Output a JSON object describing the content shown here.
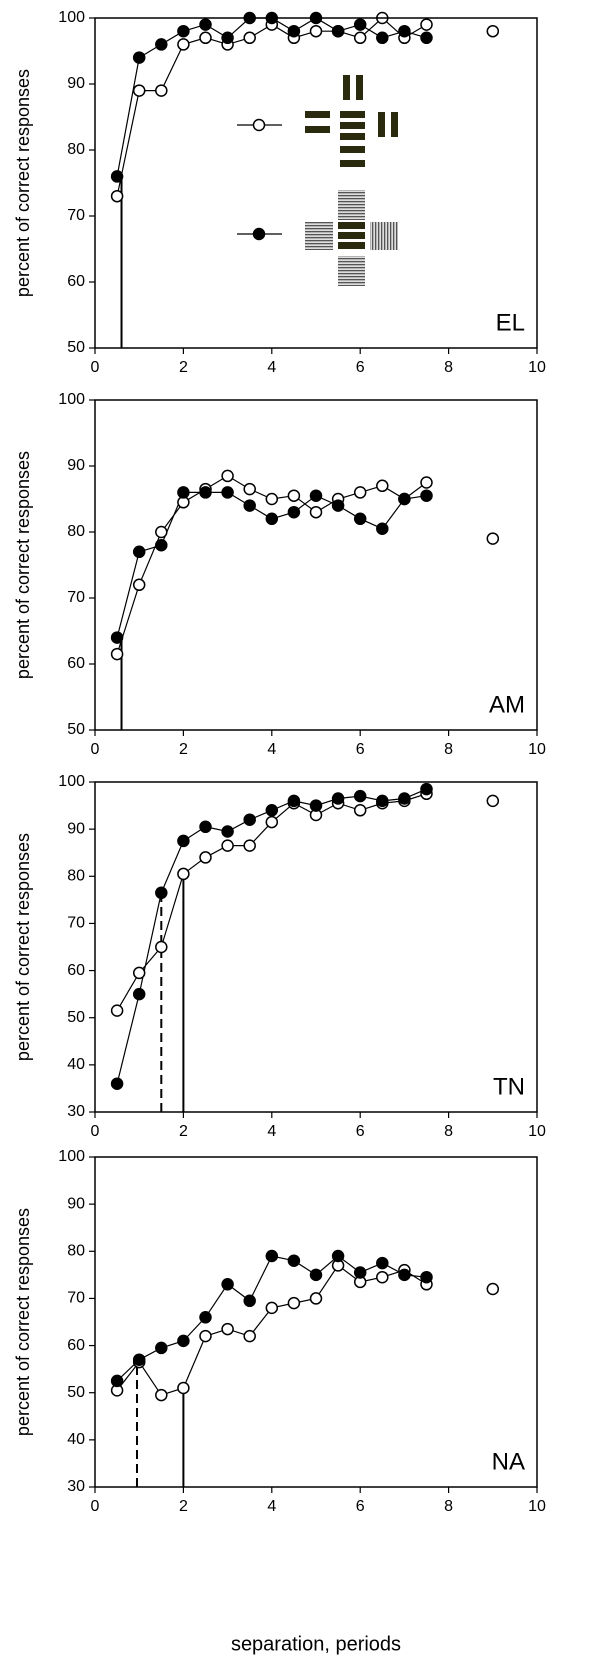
{
  "chart_data": [
    {
      "type": "line",
      "label": "EL",
      "ylabel": "percent of correct responses",
      "xlim": [
        0,
        10
      ],
      "xticks": [
        0,
        2,
        4,
        6,
        8,
        10
      ],
      "ylim": [
        50,
        100
      ],
      "yticks": [
        50,
        60,
        70,
        80,
        90,
        100
      ],
      "legend": true,
      "series": [
        {
          "marker": "open",
          "color": "#000000",
          "x": [
            0.5,
            1,
            1.5,
            2,
            2.5,
            3,
            3.5,
            4,
            4.5,
            5,
            5.5,
            6,
            6.5,
            7,
            7.5
          ],
          "values": [
            73,
            89,
            89,
            96,
            97,
            96,
            97,
            99,
            97,
            98,
            98,
            97,
            100,
            97,
            99
          ]
        },
        {
          "marker": "filled",
          "color": "#000000",
          "x": [
            0.5,
            1,
            1.5,
            2,
            2.5,
            3,
            3.5,
            4,
            4.5,
            5,
            5.5,
            6,
            6.5,
            7,
            7.5
          ],
          "values": [
            76,
            94,
            96,
            98,
            99,
            97,
            100,
            100,
            98,
            100,
            98,
            99,
            97,
            98,
            97
          ]
        },
        {
          "marker": "open",
          "color": "#000000",
          "line": false,
          "x": [
            9
          ],
          "values": [
            98
          ]
        }
      ],
      "thresholds": [
        {
          "x": 0.6,
          "y": 76,
          "style": "solid"
        }
      ]
    },
    {
      "type": "line",
      "label": "AM",
      "ylabel": "percent of correct responses",
      "xlim": [
        0,
        10
      ],
      "xticks": [
        0,
        2,
        4,
        6,
        8,
        10
      ],
      "ylim": [
        50,
        100
      ],
      "yticks": [
        50,
        60,
        70,
        80,
        90,
        100
      ],
      "series": [
        {
          "marker": "open",
          "color": "#000000",
          "x": [
            0.5,
            1,
            1.5,
            2,
            2.5,
            3,
            3.5,
            4,
            4.5,
            5,
            5.5,
            6,
            6.5,
            7,
            7.5
          ],
          "values": [
            61.5,
            72,
            80,
            84.5,
            86.5,
            88.5,
            86.5,
            85,
            85.5,
            83,
            85,
            86,
            87,
            85,
            87.5
          ]
        },
        {
          "marker": "filled",
          "color": "#000000",
          "x": [
            0.5,
            1,
            1.5,
            2,
            2.5,
            3,
            3.5,
            4,
            4.5,
            5,
            5.5,
            6,
            6.5,
            7,
            7.5
          ],
          "values": [
            64,
            77,
            78,
            86,
            86,
            86,
            84,
            82,
            83,
            85.5,
            84,
            82,
            80.5,
            85,
            85.5
          ]
        },
        {
          "marker": "open",
          "color": "#000000",
          "line": false,
          "x": [
            9
          ],
          "values": [
            79
          ]
        }
      ],
      "thresholds": [
        {
          "x": 0.6,
          "y": 64,
          "style": "solid"
        }
      ]
    },
    {
      "type": "line",
      "label": "TN",
      "ylabel": "percent of correct responses",
      "xlim": [
        0,
        10
      ],
      "xticks": [
        0,
        2,
        4,
        6,
        8,
        10
      ],
      "ylim": [
        30,
        100
      ],
      "yticks": [
        30,
        40,
        50,
        60,
        70,
        80,
        90,
        100
      ],
      "series": [
        {
          "marker": "open",
          "color": "#000000",
          "x": [
            0.5,
            1,
            1.5,
            2,
            2.5,
            3,
            3.5,
            4,
            4.5,
            5,
            5.5,
            6,
            6.5,
            7,
            7.5
          ],
          "values": [
            51.5,
            59.5,
            65,
            80.5,
            84,
            86.5,
            86.5,
            91.5,
            95.5,
            93,
            95.5,
            94,
            95.5,
            96,
            97.5
          ]
        },
        {
          "marker": "filled",
          "color": "#000000",
          "x": [
            0.5,
            1,
            1.5,
            2,
            2.5,
            3,
            3.5,
            4,
            4.5,
            5,
            5.5,
            6,
            6.5,
            7,
            7.5
          ],
          "values": [
            36,
            55,
            76.5,
            87.5,
            90.5,
            89.5,
            92,
            94,
            96,
            95,
            96.5,
            97,
            96,
            96.5,
            98.5
          ]
        },
        {
          "marker": "open",
          "color": "#000000",
          "line": false,
          "x": [
            9
          ],
          "values": [
            96
          ]
        }
      ],
      "thresholds": [
        {
          "x": 1.5,
          "y": 76.5,
          "style": "dashed"
        },
        {
          "x": 2,
          "y": 80.5,
          "style": "solid"
        }
      ]
    },
    {
      "type": "line",
      "label": "NA",
      "ylabel": "percent of correct responses",
      "xlabel": "separation, periods",
      "xlim": [
        0,
        10
      ],
      "xticks": [
        0,
        2,
        4,
        6,
        8,
        10
      ],
      "ylim": [
        30,
        100
      ],
      "yticks": [
        30,
        40,
        50,
        60,
        70,
        80,
        90,
        100
      ],
      "series": [
        {
          "marker": "open",
          "color": "#000000",
          "x": [
            0.5,
            1,
            1.5,
            2,
            2.5,
            3,
            3.5,
            4,
            4.5,
            5,
            5.5,
            6,
            6.5,
            7,
            7.5
          ],
          "values": [
            50.5,
            56.5,
            49.5,
            51,
            62,
            63.5,
            62,
            68,
            69,
            70,
            77,
            73.5,
            74.5,
            76,
            73
          ]
        },
        {
          "marker": "filled",
          "color": "#000000",
          "x": [
            0.5,
            1,
            1.5,
            2,
            2.5,
            3,
            3.5,
            4,
            4.5,
            5,
            5.5,
            6,
            6.5,
            7,
            7.5
          ],
          "values": [
            52.5,
            57,
            59.5,
            61,
            66,
            73,
            69.5,
            79,
            78,
            75,
            79,
            75.5,
            77.5,
            75,
            74.5
          ]
        },
        {
          "marker": "open",
          "color": "#000000",
          "line": false,
          "x": [
            9
          ],
          "values": [
            72
          ]
        }
      ],
      "thresholds": [
        {
          "x": 0.95,
          "y": 56,
          "style": "dashed"
        },
        {
          "x": 2,
          "y": 51,
          "style": "solid"
        }
      ]
    }
  ]
}
